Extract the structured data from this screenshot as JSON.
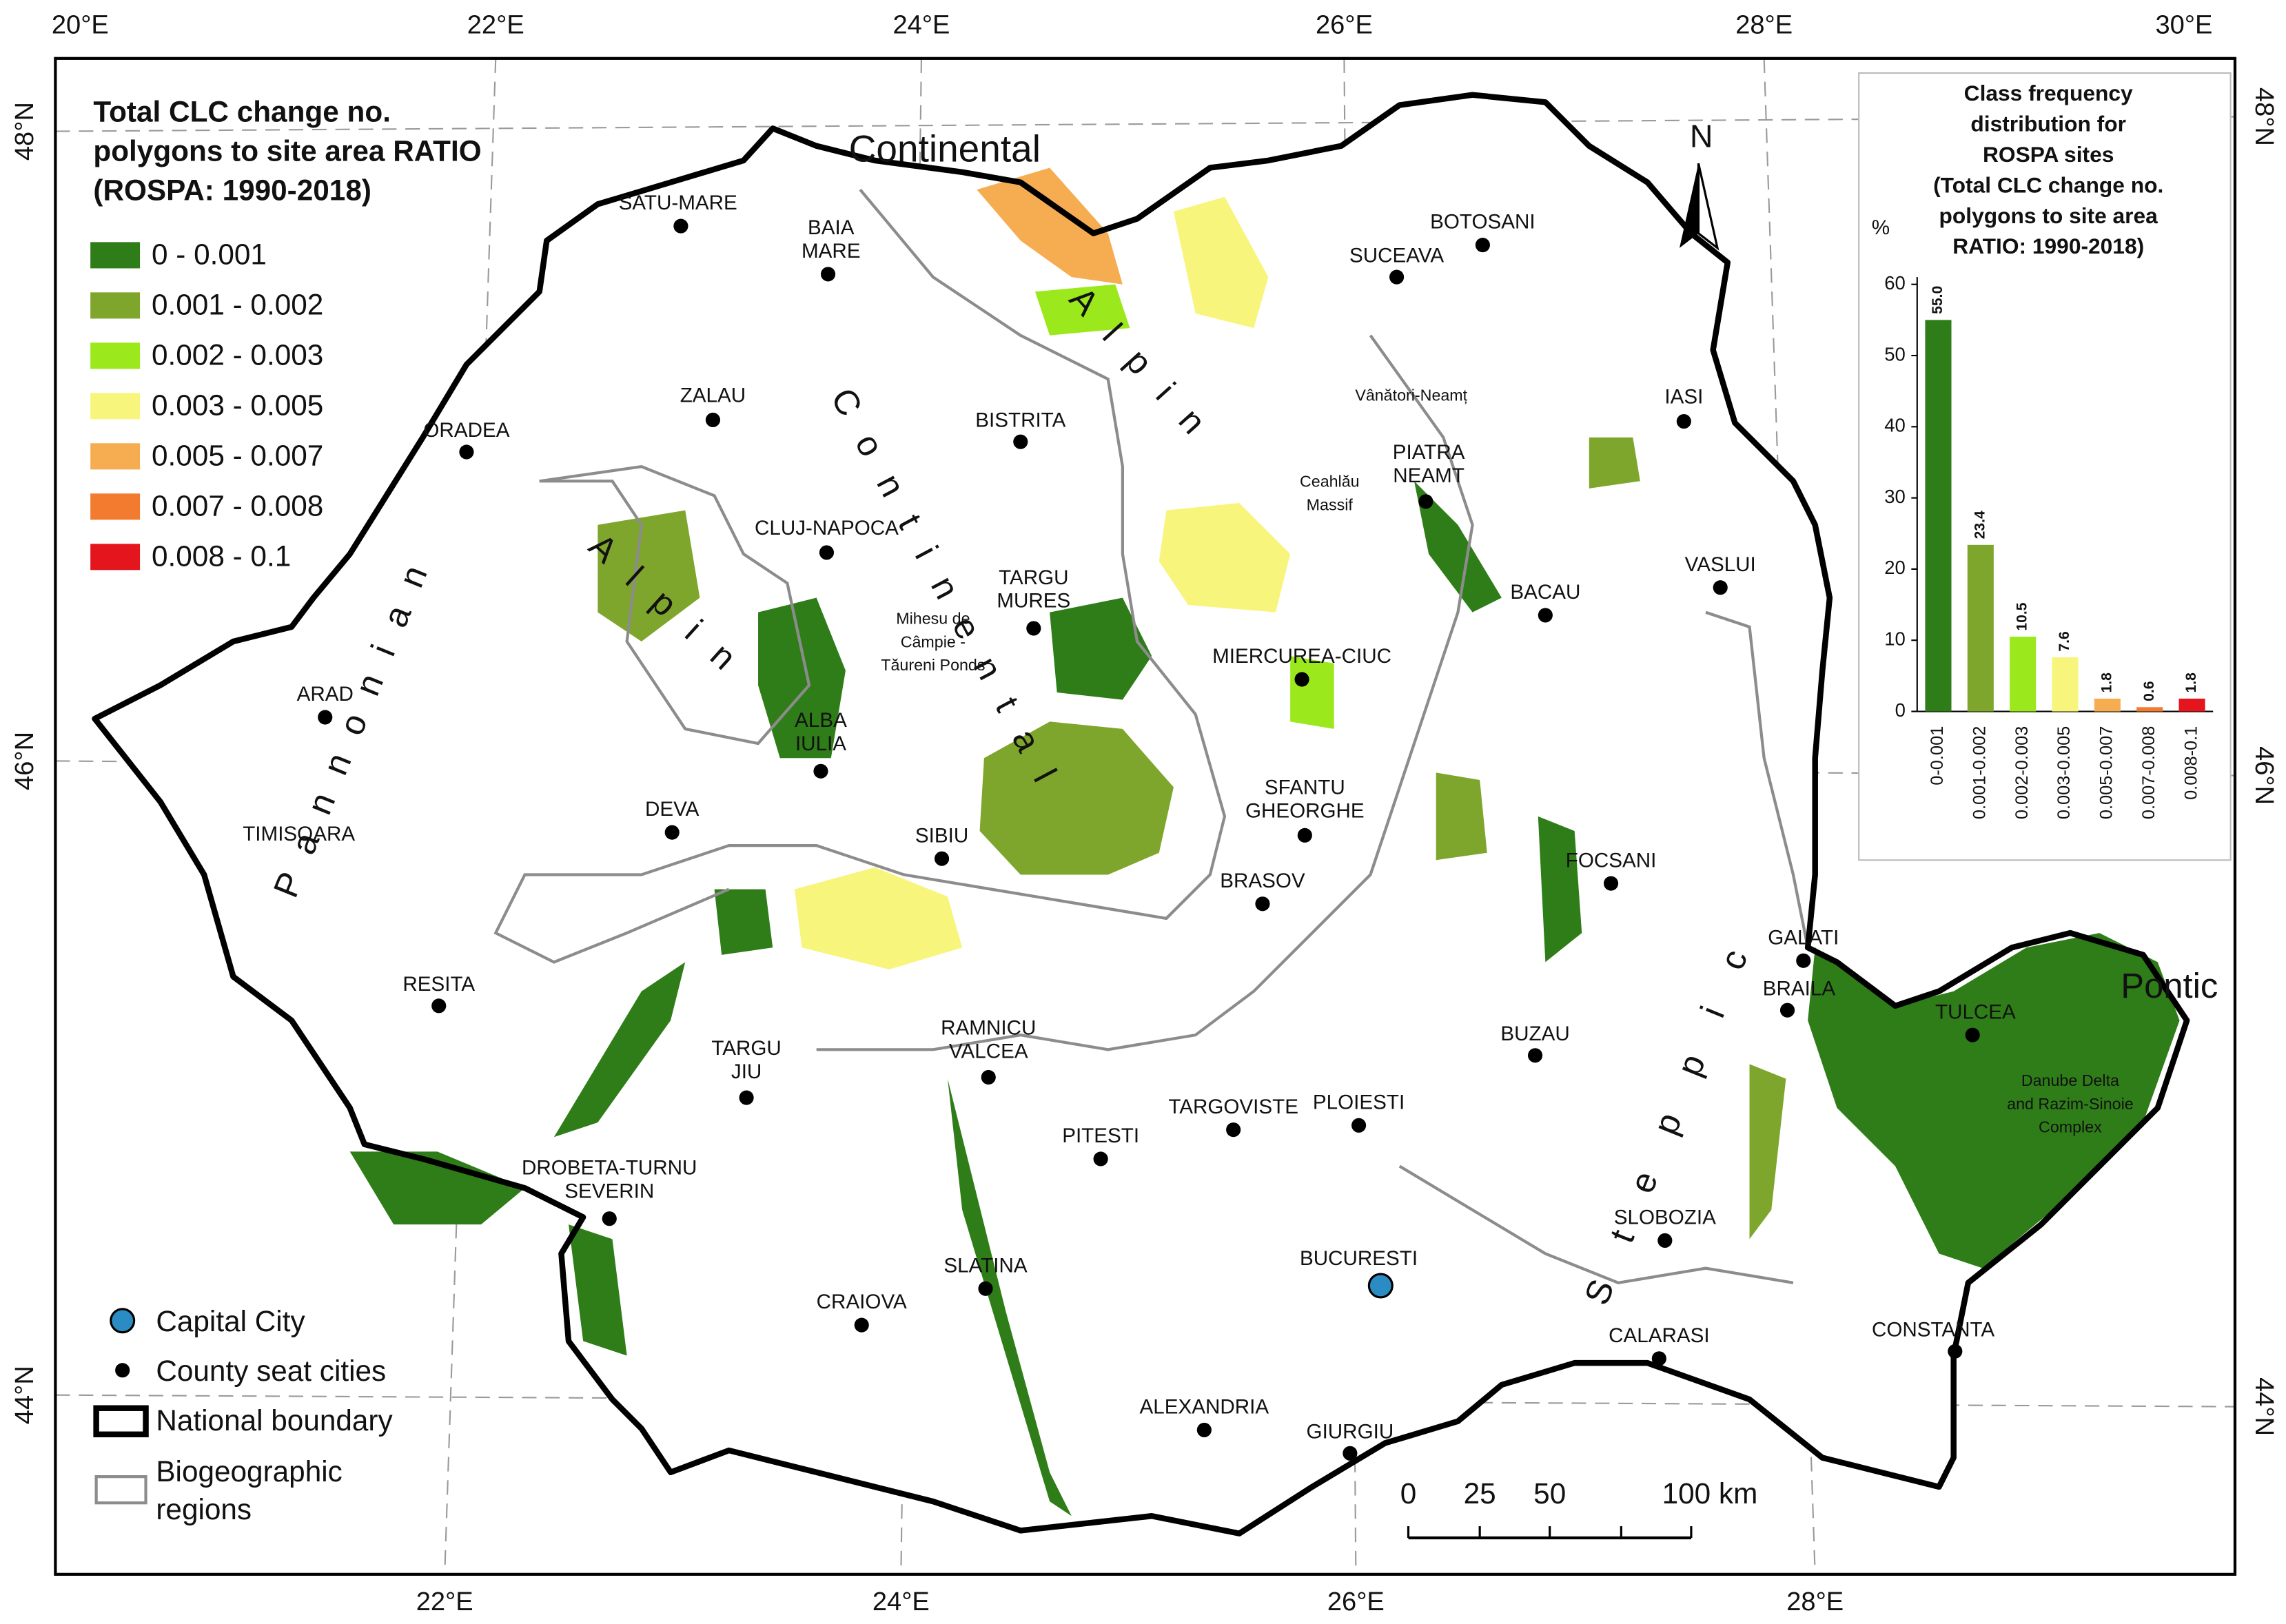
{
  "map": {
    "lon_ticks": [
      {
        "value": 20,
        "label": "20°E"
      },
      {
        "value": 22,
        "label": "22°E"
      },
      {
        "value": 24,
        "label": "24°E"
      },
      {
        "value": 26,
        "label": "26°E"
      },
      {
        "value": 28,
        "label": "28°E"
      },
      {
        "value": 30,
        "label": "30°E"
      }
    ],
    "lat_ticks": [
      {
        "value": 48,
        "label": "48°N"
      },
      {
        "value": 46,
        "label": "46°N"
      },
      {
        "value": 44,
        "label": "44°N"
      }
    ],
    "legend": {
      "title": [
        "Total CLC change no.",
        "polygons to site area RATIO",
        "(ROSPA: 1990-2018)"
      ],
      "classes": [
        {
          "label": "0 - 0.001",
          "color": "#2f7d18"
        },
        {
          "label": "0.001 - 0.002",
          "color": "#7fa62c"
        },
        {
          "label": "0.002 - 0.003",
          "color": "#9be81c"
        },
        {
          "label": "0.003 - 0.005",
          "color": "#f7f57c"
        },
        {
          "label": "0.005 - 0.007",
          "color": "#f6ad52"
        },
        {
          "label": "0.007 - 0.008",
          "color": "#f27b30"
        },
        {
          "label": "0.008 - 0.1",
          "color": "#e5151d"
        }
      ]
    },
    "symbols": {
      "capital": "Capital City",
      "county_seat": "County seat cities",
      "boundary": "National boundary",
      "regions": [
        "Biogeographic",
        "regions"
      ]
    },
    "capital": {
      "lines": [
        "BUCURESTI"
      ]
    },
    "cities": [
      {
        "lines": [
          "SATU-MARE"
        ]
      },
      {
        "lines": [
          "BAIA",
          "MARE"
        ]
      },
      {
        "lines": [
          "BOTOSANI"
        ]
      },
      {
        "lines": [
          "SUCEAVA"
        ]
      },
      {
        "lines": [
          "ZALAU"
        ]
      },
      {
        "lines": [
          "BISTRITA"
        ]
      },
      {
        "lines": [
          "IASI"
        ]
      },
      {
        "lines": [
          "ORADEA"
        ]
      },
      {
        "lines": [
          "PIATRA",
          "NEAMT"
        ]
      },
      {
        "lines": [
          "CLUJ-NAPOCA"
        ]
      },
      {
        "lines": [
          "TARGU",
          "MURES"
        ]
      },
      {
        "lines": [
          "VASLUI"
        ]
      },
      {
        "lines": [
          "BACAU"
        ]
      },
      {
        "lines": [
          "MIERCUREA-CIUC"
        ]
      },
      {
        "lines": [
          "ARAD"
        ]
      },
      {
        "lines": [
          "ALBA",
          "IULIA"
        ]
      },
      {
        "lines": [
          "SFANTU",
          "GHEORGHE"
        ]
      },
      {
        "lines": [
          "DEVA"
        ]
      },
      {
        "lines": [
          "TIMISOARA"
        ]
      },
      {
        "lines": [
          "SIBIU"
        ]
      },
      {
        "lines": [
          "FOCSANI"
        ]
      },
      {
        "lines": [
          "BRASOV"
        ]
      },
      {
        "lines": [
          "GALATI"
        ]
      },
      {
        "lines": [
          "BRAILA"
        ]
      },
      {
        "lines": [
          "TULCEA"
        ]
      },
      {
        "lines": [
          "RESITA"
        ]
      },
      {
        "lines": [
          "BUZAU"
        ]
      },
      {
        "lines": [
          "TARGU",
          "JIU"
        ]
      },
      {
        "lines": [
          "RAMNICU",
          "VALCEA"
        ]
      },
      {
        "lines": [
          "TARGOVISTE"
        ]
      },
      {
        "lines": [
          "PLOIESTI"
        ]
      },
      {
        "lines": [
          "PITESTI"
        ]
      },
      {
        "lines": [
          "DROBETA-TURNU",
          "SEVERIN"
        ]
      },
      {
        "lines": [
          "SLOBOZIA"
        ]
      },
      {
        "lines": [
          "SLATINA"
        ]
      },
      {
        "lines": [
          "CRAIOVA"
        ]
      },
      {
        "lines": [
          "CONSTANTA"
        ]
      },
      {
        "lines": [
          "CALARASI"
        ]
      },
      {
        "lines": [
          "ALEXANDRIA"
        ]
      },
      {
        "lines": [
          "GIURGIU"
        ]
      }
    ],
    "places": [
      {
        "lines": [
          "Vânători-Neamț"
        ]
      },
      {
        "lines": [
          "Ceahlău",
          "Massif"
        ]
      },
      {
        "lines": [
          "Mihesu de",
          "Câmpie -",
          "Tăureni Ponds"
        ]
      },
      {
        "lines": [
          "Danube Delta",
          "and Razim-Sinoie",
          "Complex"
        ]
      }
    ],
    "regions": [
      "Continental",
      "Alpin",
      "Pannonian",
      "Steppic",
      "Pontic"
    ],
    "north": "N",
    "scale": [
      "0",
      "25",
      "50",
      "100 km"
    ]
  },
  "inset_chart": {
    "type": "bar",
    "title": [
      "Class frequency",
      "distribution for",
      "ROSPA sites",
      "(Total CLC change no.",
      "polygons to site area",
      "RATIO: 1990-2018)"
    ],
    "ylabel": "%",
    "categories": [
      "0-0.001",
      "0.001-0.002",
      "0.002-0.003",
      "0.003-0.005",
      "0.005-0.007",
      "0.007-0.008",
      "0.008-0.1"
    ],
    "values": [
      55.0,
      23.4,
      10.5,
      7.6,
      1.8,
      0.6,
      1.8
    ],
    "value_labels": [
      "55.0",
      "23.4",
      "10.5",
      "7.6",
      "1.8",
      "0.6",
      "1.8"
    ],
    "colors": [
      "#2f7d18",
      "#7fa62c",
      "#9be81c",
      "#f7f57c",
      "#f6ad52",
      "#f27b30",
      "#e5151d"
    ],
    "ylim": [
      0,
      60
    ],
    "yticks": [
      0,
      10,
      20,
      30,
      40,
      50,
      60
    ]
  }
}
